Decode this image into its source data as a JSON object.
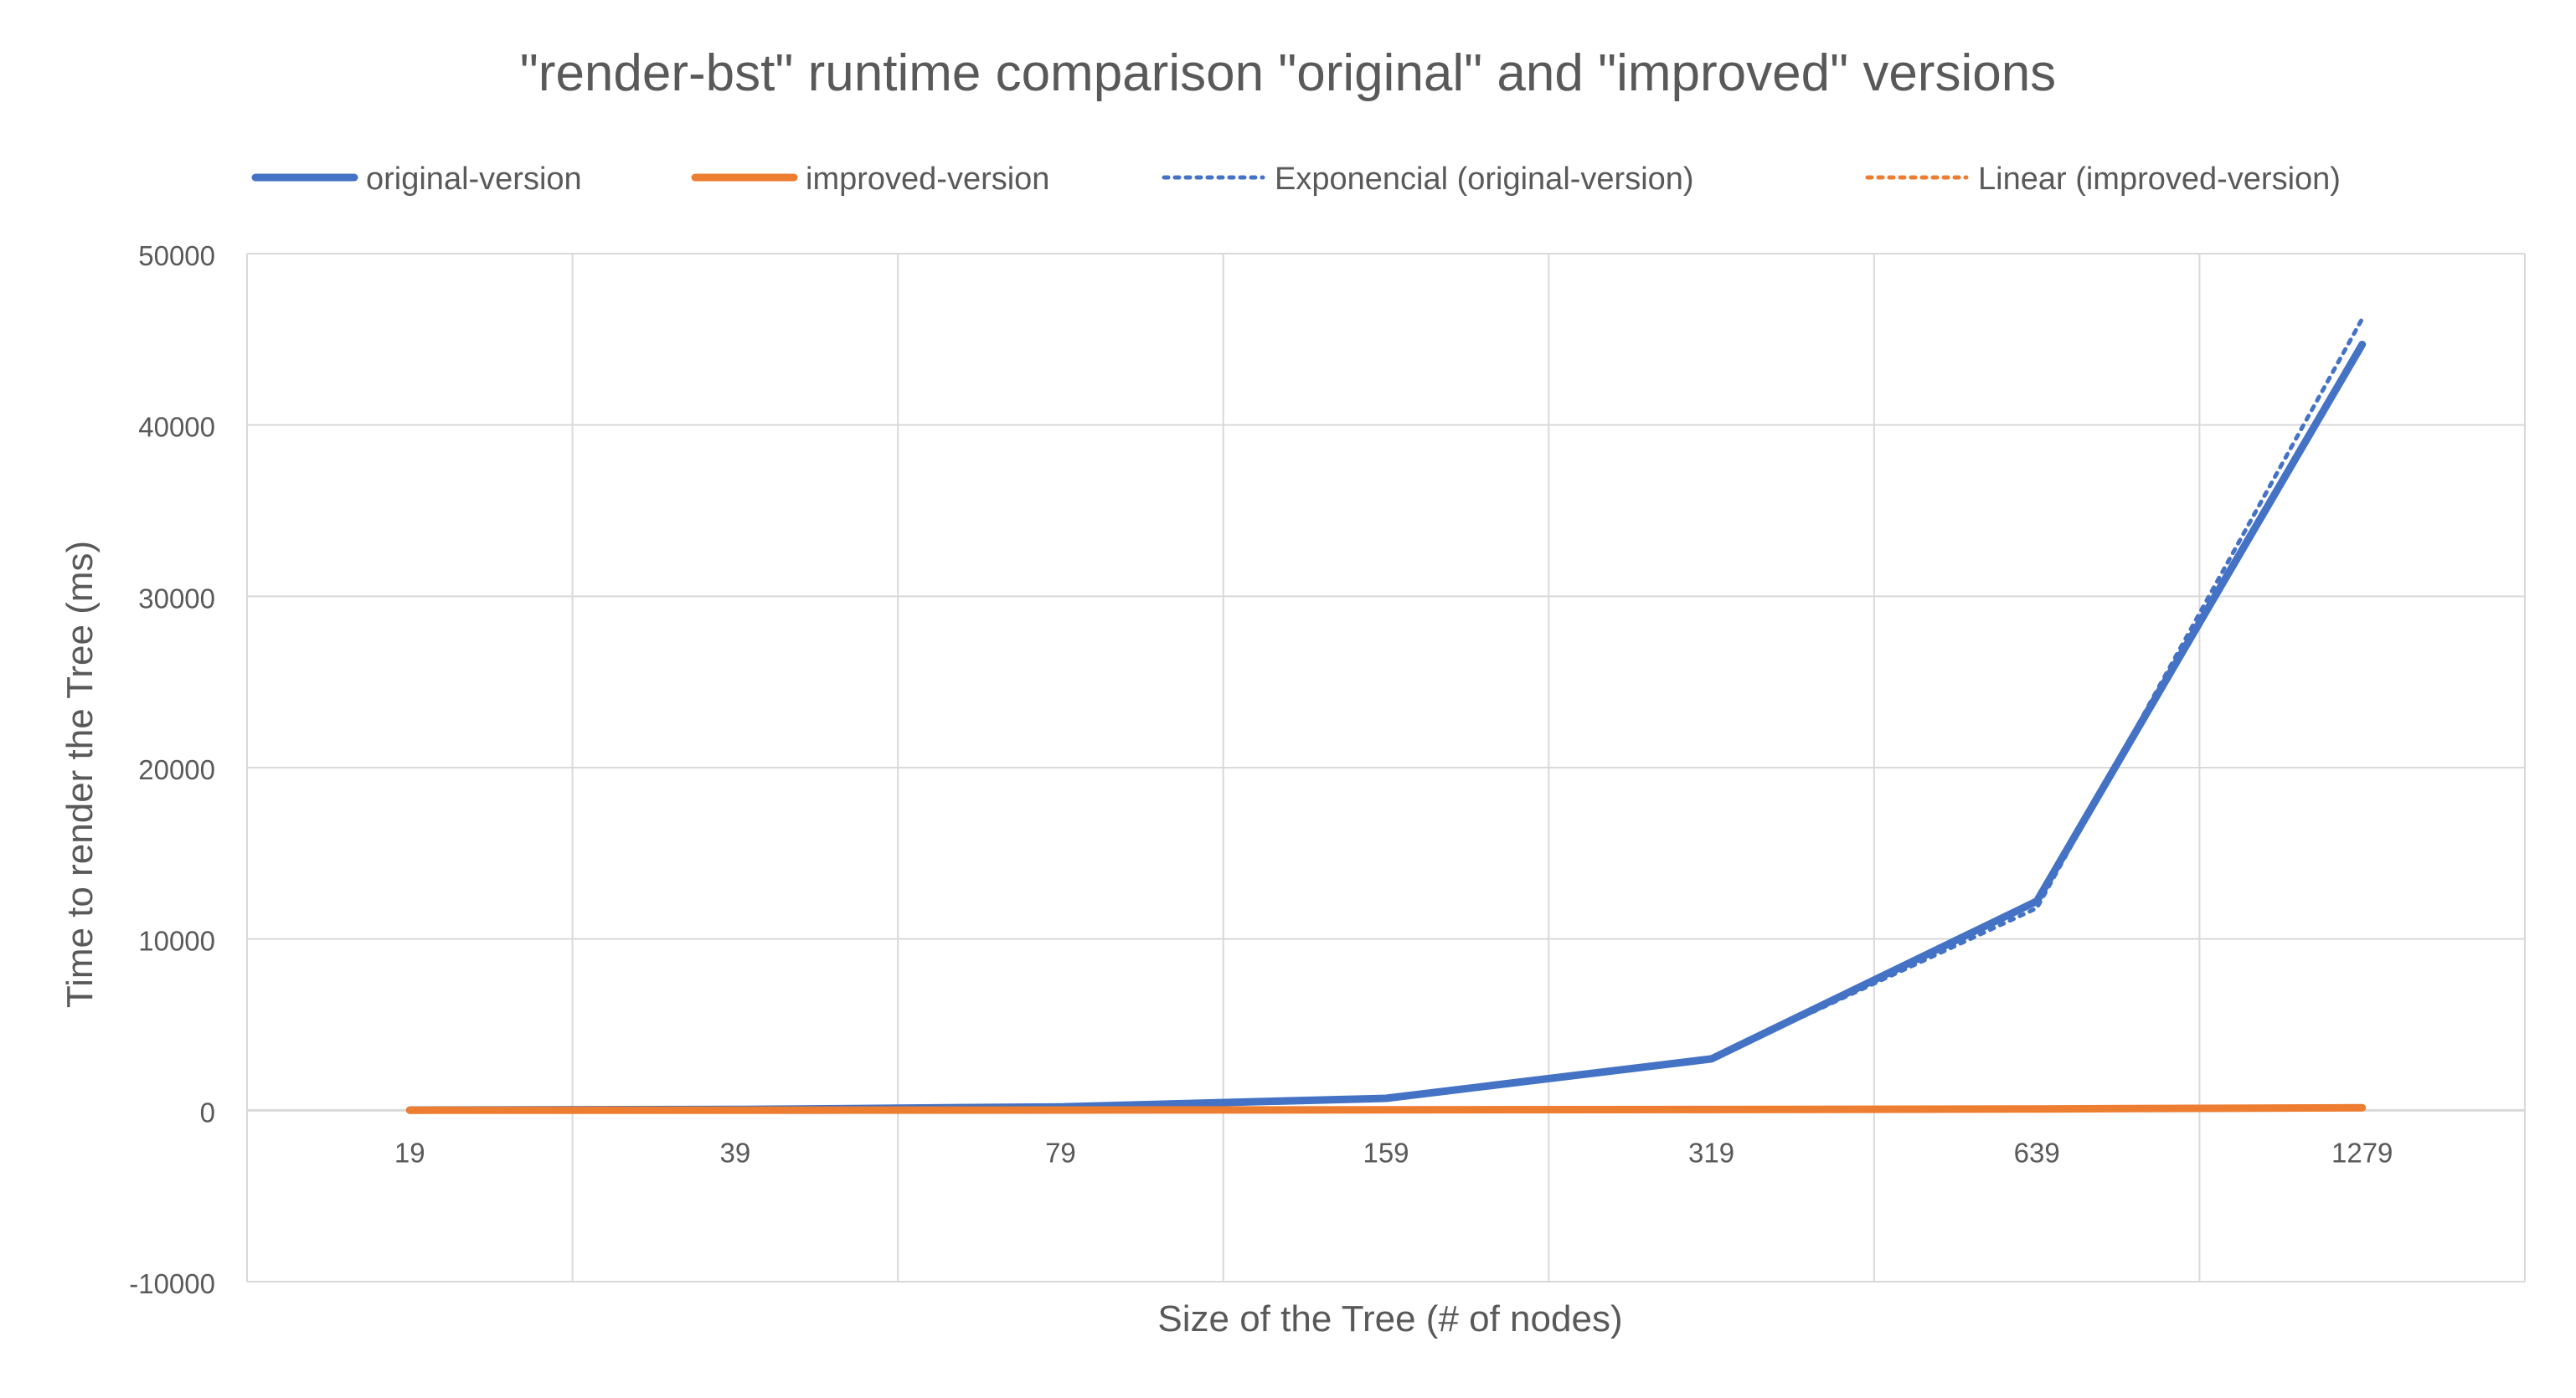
{
  "chart_data": {
    "type": "line",
    "title": "\"render-bst\" runtime comparison \"original\" and \"improved\" versions",
    "xlabel": "Size of the Tree (# of nodes)",
    "ylabel": "Time to render the Tree (ms)",
    "categories": [
      "19",
      "39",
      "79",
      "159",
      "319",
      "639",
      "1279"
    ],
    "ylim": [
      -10000,
      50000
    ],
    "yticks": [
      -10000,
      0,
      10000,
      20000,
      30000,
      40000,
      50000
    ],
    "grid": true,
    "legend_position": "top",
    "series": [
      {
        "name": "original-version",
        "values": [
          12,
          50,
          200,
          700,
          3000,
          12200,
          44700
        ],
        "color": "#4472C4",
        "style": "solid"
      },
      {
        "name": "improved-version",
        "values": [
          5,
          8,
          15,
          25,
          45,
          80,
          150
        ],
        "color": "#ED7D31",
        "style": "solid"
      }
    ],
    "trendlines": [
      {
        "name": "Exponencial (original-version)",
        "kind": "exponential",
        "of_series": "original-version",
        "values": [
          12,
          48,
          190,
          760,
          3000,
          11800,
          46200
        ],
        "color": "#4472C4",
        "style": "dotted"
      },
      {
        "name": "Linear (improved-version)",
        "kind": "linear",
        "of_series": "improved-version",
        "values": [
          -20,
          5,
          30,
          55,
          80,
          105,
          130
        ],
        "color": "#ED7D31",
        "style": "dotted"
      }
    ]
  }
}
